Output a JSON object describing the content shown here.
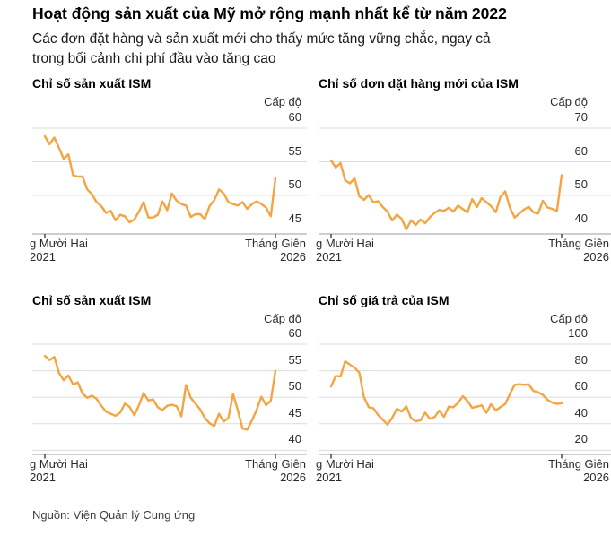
{
  "header": {
    "title": "Hoạt động sản xuất của Mỹ mở rộng mạnh nhất kể từ năm 2022",
    "subtitle_lines": [
      "Các đơn đặt hàng và sản xuất mới cho thấy mức tăng vững chắc, ngay cả",
      "trong bối cảnh chi phí đầu vào tăng cao"
    ]
  },
  "source": "Nguồn: Viện Quản lý Cung ứng",
  "colors": {
    "line": "#F4A542",
    "grid": "#DBDBDB",
    "axis": "#9E9E9E",
    "tick": "#4A4A4A"
  },
  "chart_data": [
    {
      "type": "line",
      "title": "Chỉ số sản xuất ISM",
      "ylabel": "Cấp độ",
      "y_gridlines": [
        60,
        55,
        50,
        45
      ],
      "x_start_lines": [
        "g Mười Hai",
        "2021"
      ],
      "x_end_lines": [
        "Tháng Giên",
        "2026"
      ],
      "values": [
        58.8,
        57.6,
        58.6,
        57.1,
        55.4,
        56.1,
        53.0,
        52.8,
        52.8,
        50.9,
        50.2,
        49.0,
        48.4,
        47.4,
        47.7,
        46.3,
        47.1,
        46.9,
        46.0,
        46.4,
        47.6,
        49.0,
        46.7,
        46.7,
        47.1,
        49.1,
        47.8,
        50.3,
        49.2,
        48.7,
        48.5,
        46.8,
        47.2,
        47.2,
        46.5,
        48.4,
        49.3,
        50.9,
        50.3,
        49.0,
        48.7,
        48.5,
        49.0,
        48.0,
        48.7,
        49.1,
        48.7,
        48.2,
        46.9,
        52.6
      ]
    },
    {
      "type": "line",
      "title": "Chỉ số dơn dặt hàng mới của ISM",
      "ylabel": "Cấp độ",
      "y_gridlines": [
        70,
        60,
        50,
        40
      ],
      "x_start_lines": [
        "g Mười Hai",
        "2021"
      ],
      "x_end_lines": [
        "Tháng Giên",
        "2026"
      ],
      "values": [
        60.4,
        58.3,
        59.6,
        54.5,
        53.6,
        55.1,
        49.7,
        48.7,
        50.1,
        47.9,
        48.3,
        46.5,
        45.2,
        42.5,
        44.3,
        43.0,
        39.9,
        42.6,
        41.2,
        42.8,
        41.7,
        43.5,
        44.8,
        45.7,
        45.4,
        46.3,
        45.2,
        47.0,
        45.9,
        45.0,
        48.9,
        46.5,
        49.2,
        48.0,
        46.8,
        45.0,
        49.6,
        51.2,
        46.4,
        43.4,
        44.6,
        45.8,
        46.6,
        45.0,
        44.6,
        48.4,
        46.4,
        46.0,
        45.4,
        56.0
      ]
    },
    {
      "type": "line",
      "title": "Chỉ số sản xuất ISM",
      "ylabel": "Cấp độ",
      "y_gridlines": [
        60,
        55,
        50,
        45,
        40
      ],
      "x_start_lines": [
        "g Mười Hai",
        "2021"
      ],
      "x_end_lines": [
        "Tháng Giên",
        "2026"
      ],
      "values": [
        57.8,
        57.0,
        57.6,
        54.6,
        53.2,
        54.1,
        52.4,
        52.8,
        50.7,
        49.9,
        50.3,
        49.7,
        48.4,
        47.3,
        46.9,
        46.5,
        47.1,
        48.8,
        48.2,
        46.6,
        48.5,
        50.8,
        49.4,
        49.6,
        48.1,
        47.6,
        48.4,
        48.6,
        48.3,
        46.4,
        52.3,
        49.9,
        48.8,
        47.7,
        46.1,
        45.1,
        44.6,
        46.9,
        45.4,
        46.1,
        50.6,
        47.6,
        44.1,
        43.9,
        45.6,
        47.6,
        50.1,
        48.5,
        49.3,
        55.0
      ]
    },
    {
      "type": "line",
      "title": "Chỉ số giá trả của ISM",
      "ylabel": "Cấp độ",
      "y_gridlines": [
        100,
        80,
        60,
        40,
        20
      ],
      "x_start_lines": [
        "g Mười Hai",
        "2021"
      ],
      "x_end_lines": [
        "Tháng Giên",
        "2026"
      ],
      "values": [
        68.2,
        76.1,
        75.6,
        87.1,
        84.6,
        82.2,
        78.5,
        60.0,
        52.5,
        51.7,
        46.6,
        43.0,
        39.4,
        44.5,
        51.3,
        49.2,
        53.2,
        44.2,
        41.8,
        42.6,
        48.4,
        43.8,
        45.1,
        49.9,
        45.2,
        52.9,
        52.5,
        55.8,
        60.9,
        57.0,
        52.1,
        52.9,
        54.0,
        48.3,
        54.8,
        50.3,
        52.5,
        54.9,
        62.4,
        69.4,
        69.8,
        69.4,
        69.7,
        64.8,
        63.7,
        61.9,
        58.0,
        56.0,
        55.0,
        55.5
      ]
    }
  ]
}
